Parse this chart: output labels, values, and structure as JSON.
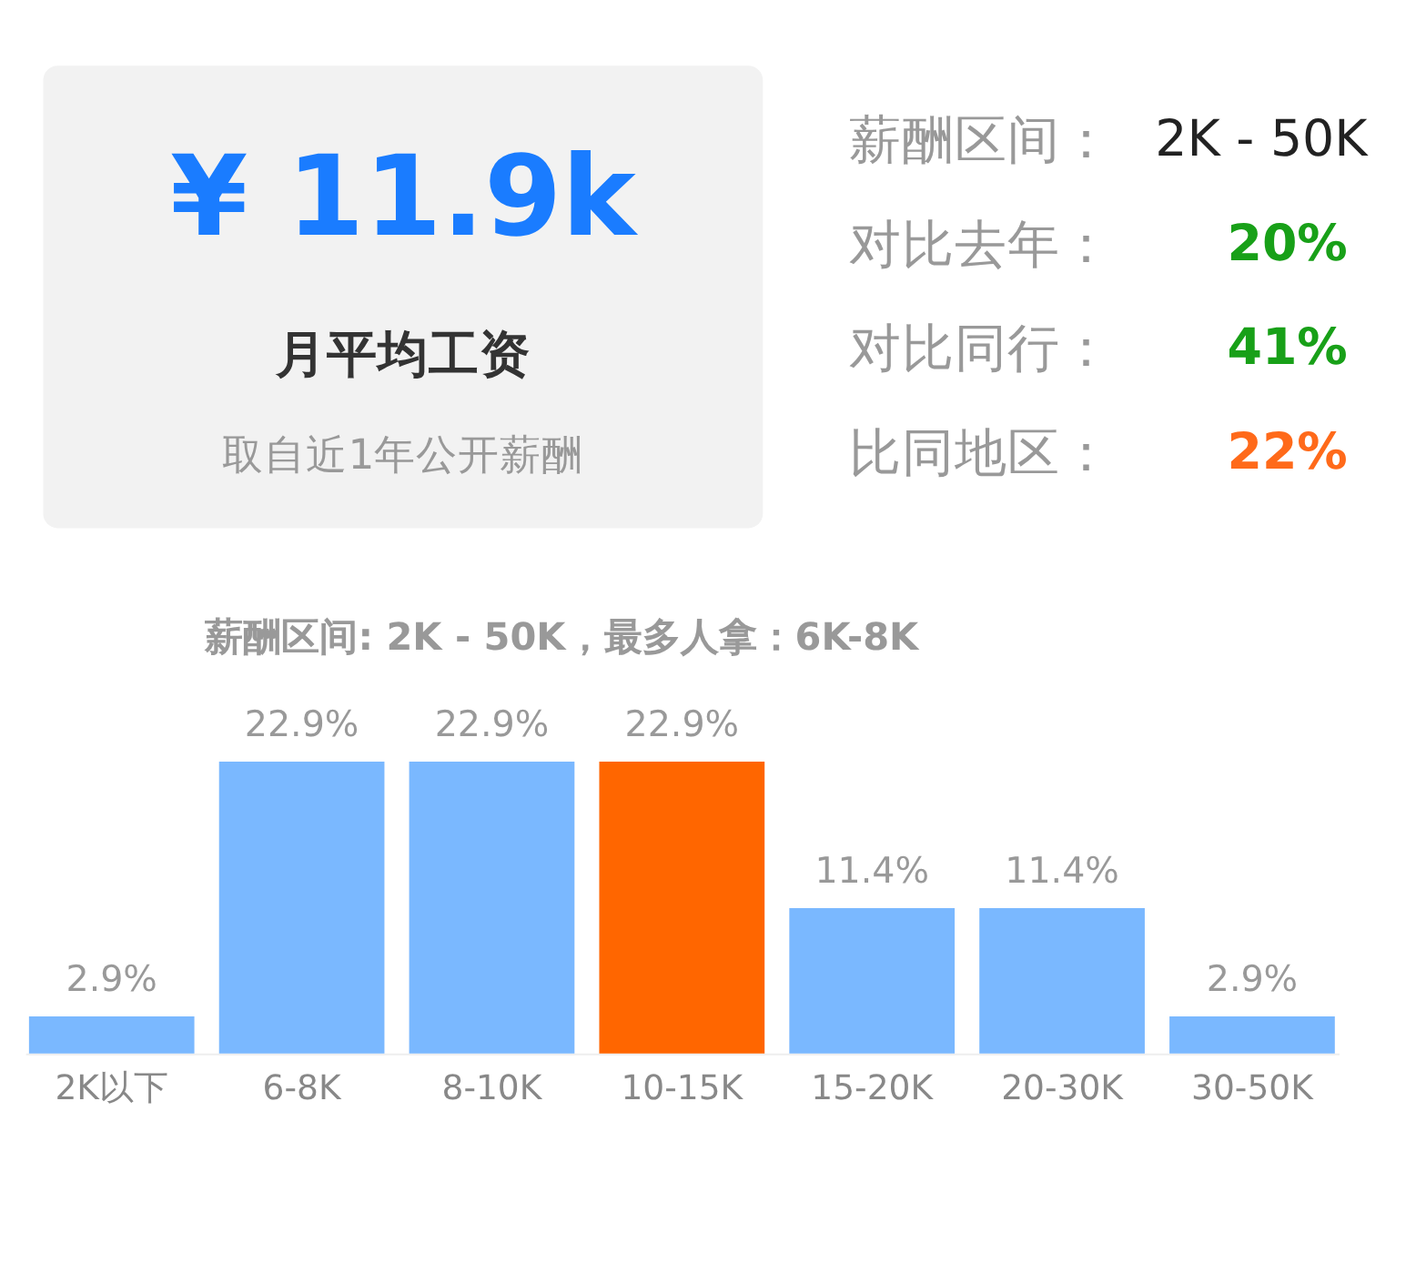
{
  "chart_data": [
    {
      "type": "other",
      "annotations": [
        "¥ 11.9k",
        "月平均工资",
        "取自近1年公开薪酬",
        "薪酬区间：",
        "2K - 50K",
        "对比去年：",
        "20%",
        "对比同行：",
        "41%",
        "比同地区：",
        "22%"
      ],
      "colors": [
        "#1a7cff",
        "#333333",
        "#999999",
        "#999999",
        "#222222",
        "#999999",
        "#18a018",
        "#999999",
        "#18a018",
        "#999999",
        "#ff6a1a"
      ]
    },
    {
      "type": "bar",
      "title": "薪酬区间: 2K - 50K，最多人拿：6K-8K",
      "categories": [
        "2K以下",
        "6-8K",
        "8-10K",
        "10-15K",
        "15-20K",
        "20-30K",
        "30-50K"
      ],
      "values": [
        2.9,
        22.9,
        22.9,
        22.9,
        11.4,
        11.4,
        2.9
      ],
      "colors": [
        "#7ab8ff",
        "#7ab8ff",
        "#7ab8ff",
        "#ff6600",
        "#7ab8ff",
        "#7ab8ff",
        "#7ab8ff"
      ],
      "value_labels": [
        "2.9%",
        "22.9%",
        "22.9%",
        "22.9%",
        "11.4%",
        "11.4%",
        "2.9%"
      ]
    }
  ]
}
